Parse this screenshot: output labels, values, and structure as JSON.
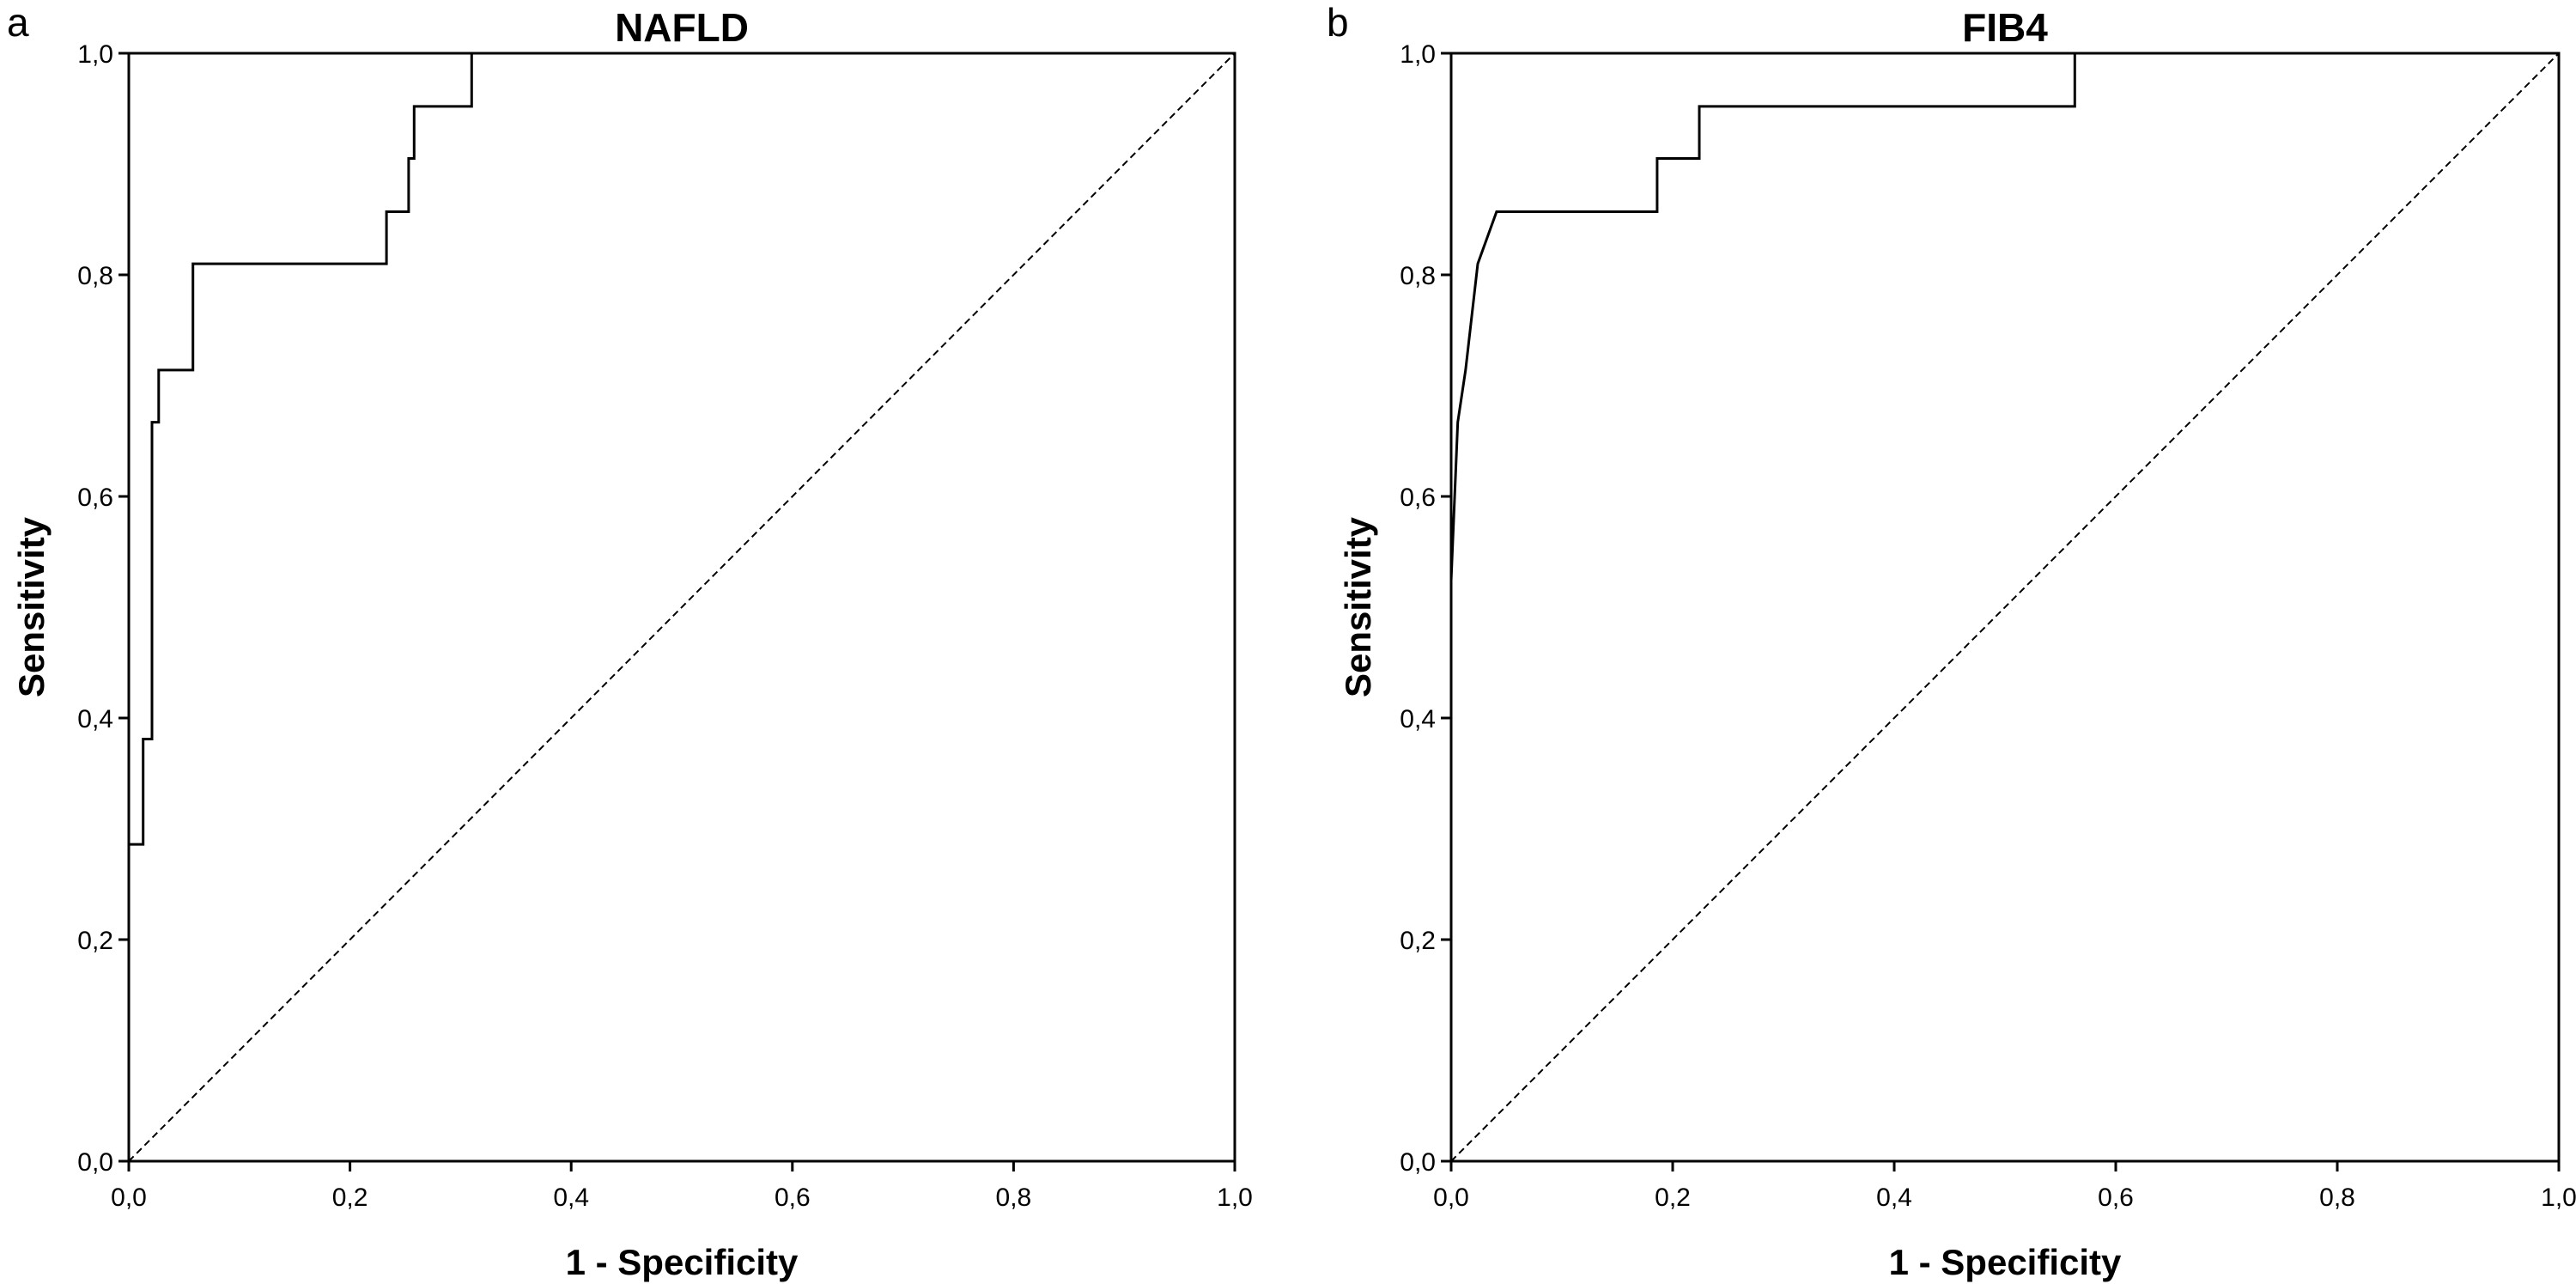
{
  "chart_data": [
    {
      "type": "line",
      "panel_label": "a",
      "title": "NAFLD",
      "xlabel": "1 - Specificity",
      "ylabel": "Sensitivity",
      "xlim": [
        0,
        1
      ],
      "ylim": [
        0,
        1
      ],
      "xticks": [
        "0,0",
        "0,2",
        "0,4",
        "0,6",
        "0,8",
        "1,0"
      ],
      "yticks": [
        "0,0",
        "0,2",
        "0,4",
        "0,6",
        "0,8",
        "1,0"
      ],
      "grid": false,
      "series": [
        {
          "style": "solid",
          "x": [
            0,
            0,
            0.013,
            0.013,
            0.021,
            0.021,
            0.027,
            0.027,
            0.058,
            0.058,
            0.233,
            0.233,
            0.253,
            0.253,
            0.258,
            0.258,
            0.31,
            0.31,
            1
          ],
          "y": [
            0,
            0.286,
            0.286,
            0.381,
            0.381,
            0.667,
            0.667,
            0.714,
            0.714,
            0.81,
            0.81,
            0.857,
            0.857,
            0.905,
            0.905,
            0.952,
            0.952,
            1,
            1
          ]
        },
        {
          "style": "dashed",
          "x": [
            0,
            1
          ],
          "y": [
            0,
            1
          ]
        }
      ]
    },
    {
      "type": "line",
      "panel_label": "b",
      "title": "FIB4",
      "xlabel": "1 - Specificity",
      "ylabel": "Sensitivity",
      "xlim": [
        0,
        1
      ],
      "ylim": [
        0,
        1
      ],
      "xticks": [
        "0,0",
        "0,2",
        "0,4",
        "0,6",
        "0,8",
        "1,0"
      ],
      "yticks": [
        "0,0",
        "0,2",
        "0,4",
        "0,6",
        "0,8",
        "1,0"
      ],
      "grid": false,
      "series": [
        {
          "style": "solid",
          "x": [
            0,
            0,
            0.006,
            0.006,
            0.013,
            0.013,
            0.024,
            0.024,
            0.041,
            0.041,
            0.186,
            0.186,
            0.224,
            0.224,
            0.563,
            0.563,
            1
          ],
          "y": [
            0,
            0.524,
            0.667,
            0.667,
            0.714,
            0.714,
            0.81,
            0.81,
            0.857,
            0.857,
            0.857,
            0.905,
            0.905,
            0.952,
            0.952,
            1,
            1
          ]
        },
        {
          "style": "dashed",
          "x": [
            0,
            1
          ],
          "y": [
            0,
            1
          ]
        }
      ]
    }
  ]
}
